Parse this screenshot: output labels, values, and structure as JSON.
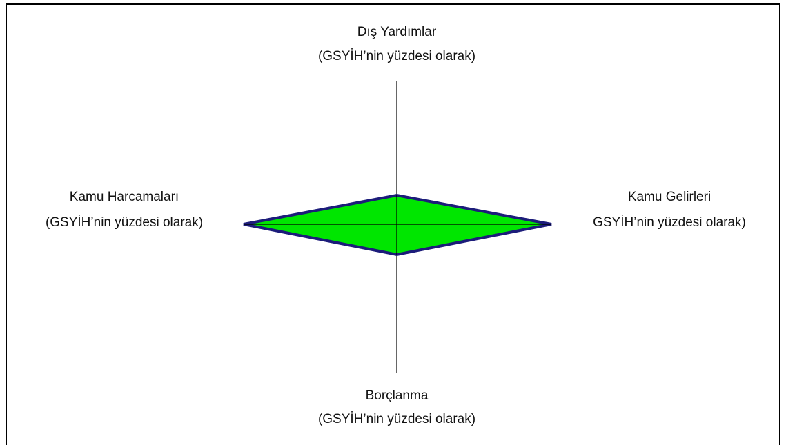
{
  "axes": {
    "top": {
      "title": "Dış Yardımlar",
      "subtitle": "(GSYİH’nin yüzdesi olarak)"
    },
    "left": {
      "title": "Kamu Harcamaları",
      "subtitle": "(GSYİH’nin yüzdesi olarak)"
    },
    "right": {
      "title": "Kamu Gelirleri",
      "subtitle": "GSYİH’nin yüzdesi olarak)"
    },
    "bottom": {
      "title": "Borçlanma",
      "subtitle": "(GSYİH’nin yüzdesi olarak)"
    }
  }
}
